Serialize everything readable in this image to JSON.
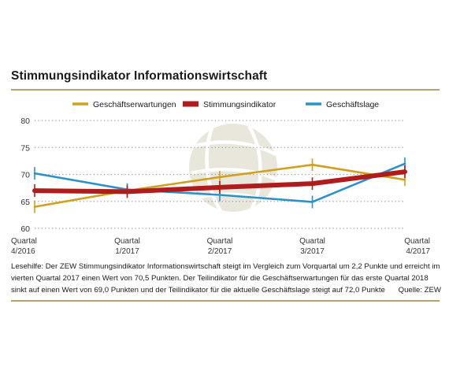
{
  "title": "Stimmungsindikator Informationswirtschaft",
  "legend": [
    {
      "label": "Geschäftserwartungen",
      "color": "#d1a01c"
    },
    {
      "label": "Stimmungsindikator",
      "color": "#b01c1c"
    },
    {
      "label": "Geschäftslage",
      "color": "#2a92c8"
    }
  ],
  "note": {
    "text": "Lesehilfe: Der ZEW Stimmungsindikator Informationswirtschaft steigt im Vergleich zum Vorquartal um 2,2 Punkte und erreicht im vierten Quartal 2017 einen Wert von 70,5 Punkten. Der Teilindikator für die Geschäftserwartungen für das erste Quartal 2018 sinkt auf einen Wert von 69,0 Punkten und der Teilindikator für die aktuelle Geschäftslage steigt auf 72,0 Punkte",
    "source": "Quelle: ZEW"
  },
  "chart_data": {
    "type": "line",
    "categories": [
      [
        "Quartal",
        "4/2016"
      ],
      [
        "Quartal",
        "1/2017"
      ],
      [
        "Quartal",
        "2/2017"
      ],
      [
        "Quartal",
        "3/2017"
      ],
      [
        "Quartal",
        "4/2017"
      ]
    ],
    "ylim": [
      60,
      80
    ],
    "yticks": [
      60,
      65,
      70,
      75,
      80
    ],
    "grid": true,
    "legend_position": "top",
    "series": [
      {
        "name": "Geschäftserwartungen",
        "color": "#d1a01c",
        "values": [
          64.0,
          67.0,
          69.5,
          71.8,
          69.0
        ]
      },
      {
        "name": "Stimmungsindikator",
        "color": "#b01c1c",
        "values": [
          67.0,
          66.8,
          67.6,
          68.3,
          70.5
        ]
      },
      {
        "name": "Geschäftslage",
        "color": "#2a92c8",
        "values": [
          70.2,
          67.2,
          66.2,
          64.9,
          72.0
        ]
      }
    ]
  }
}
